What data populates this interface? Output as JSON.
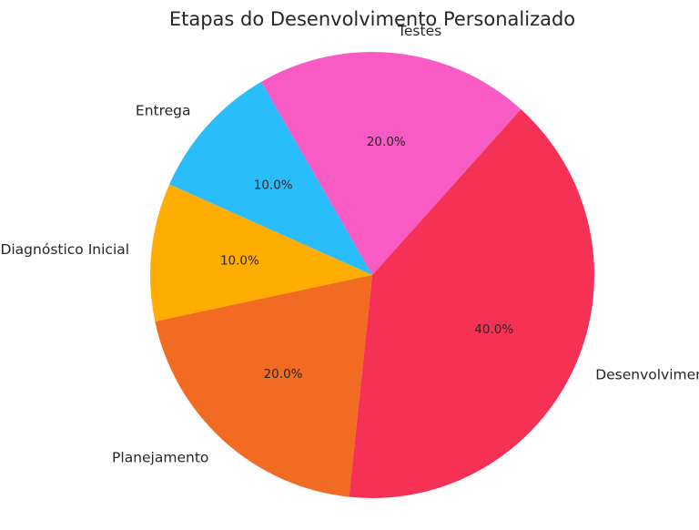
{
  "chart_data": {
    "type": "pie",
    "title": "Etapas do Desenvolvimento Personalizado",
    "categories": [
      "Diagnóstico Inicial",
      "Planejamento",
      "Desenvolvimento",
      "Testes",
      "Entrega"
    ],
    "values": [
      10.0,
      20.0,
      40.0,
      20.0,
      10.0
    ],
    "percent_labels": [
      "10.0%",
      "20.0%",
      "40.0%",
      "20.0%",
      "10.0%"
    ],
    "colors": [
      "#FFAD00",
      "#F26B22",
      "#F53256",
      "#F95BC4",
      "#2ABDFB"
    ],
    "legend": "none"
  }
}
